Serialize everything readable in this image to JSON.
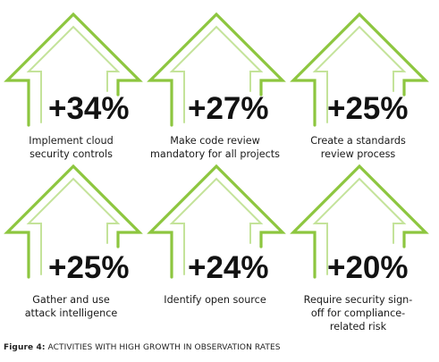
{
  "theme": {
    "accent_color": "#8dc63f",
    "text_color": "#121212"
  },
  "items": [
    {
      "value": "+34%",
      "label": "Implement cloud\nsecurity controls",
      "icon": "arrow-up-outline-icon"
    },
    {
      "value": "+27%",
      "label": "Make code review\nmandatory for all projects",
      "icon": "arrow-up-outline-icon"
    },
    {
      "value": "+25%",
      "label": "Create a standards\nreview process",
      "icon": "arrow-up-outline-icon"
    },
    {
      "value": "+25%",
      "label": "Gather and use\nattack intelligence",
      "icon": "arrow-up-outline-icon"
    },
    {
      "value": "+24%",
      "label": "Identify open source",
      "icon": "arrow-up-outline-icon"
    },
    {
      "value": "+20%",
      "label": "Require security sign-\noff for compliance-\nrelated risk",
      "icon": "arrow-up-outline-icon"
    }
  ],
  "caption": {
    "prefix": "Figure 4:",
    "text": "ACTIVITIES WITH HIGH GROWTH IN OBSERVATION RATES"
  }
}
